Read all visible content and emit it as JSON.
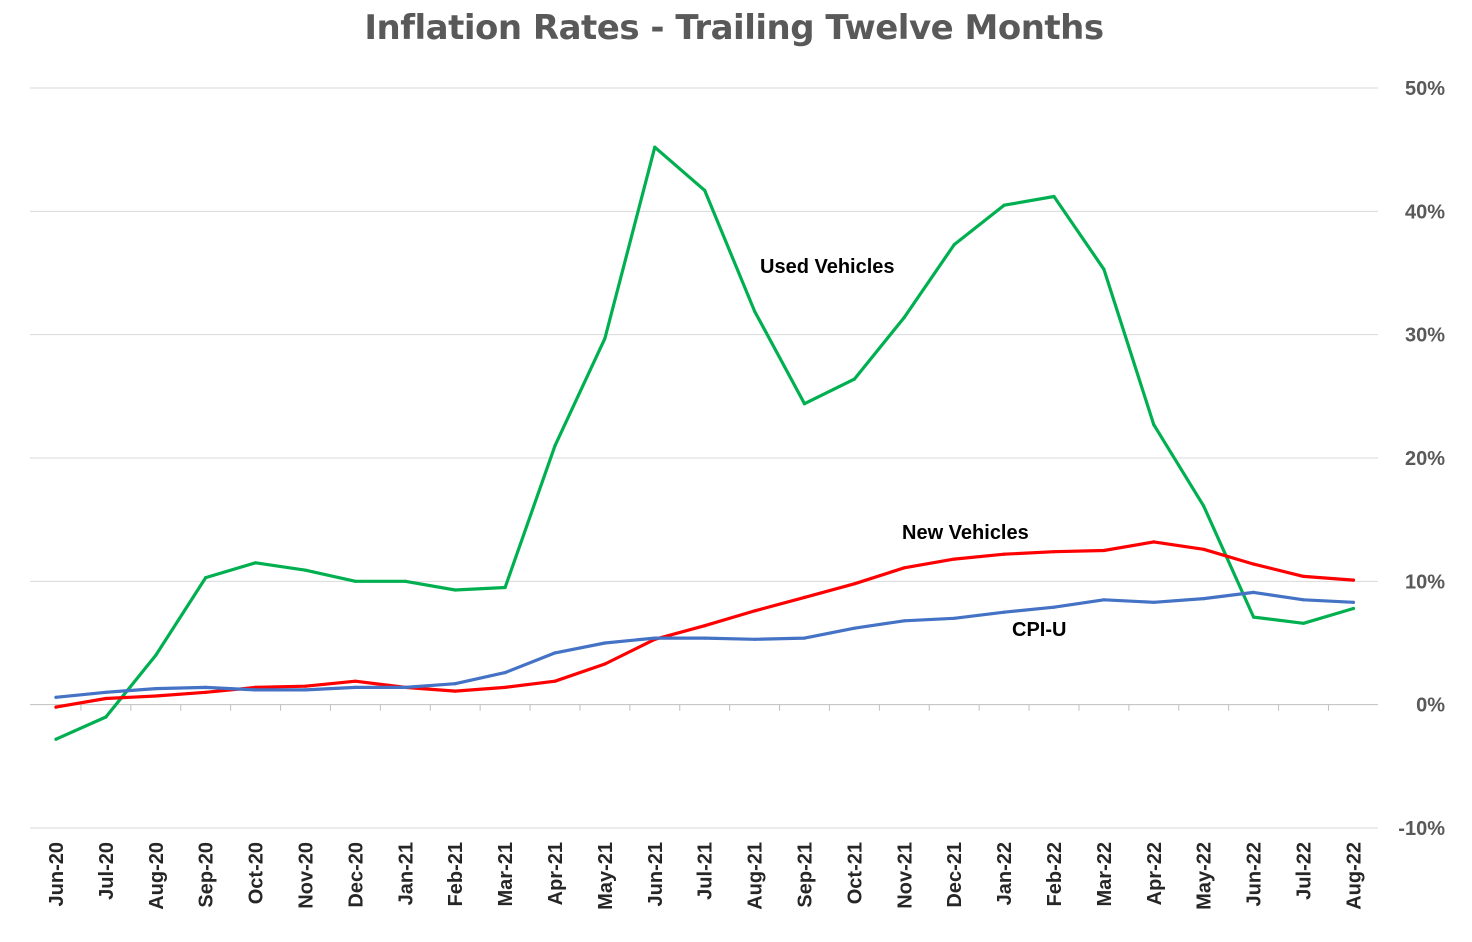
{
  "chart_data": {
    "type": "line",
    "title": "Inflation Rates - Trailing Twelve Months",
    "xlabel": "",
    "ylabel": "",
    "ylim": [
      -10,
      50
    ],
    "ytick_values": [
      -10,
      0,
      10,
      20,
      30,
      40,
      50
    ],
    "ytick_labels": [
      "-10%",
      "0%",
      "10%",
      "20%",
      "30%",
      "40%",
      "50%"
    ],
    "y_axis_side": "right",
    "grid": true,
    "legend": "none",
    "categories": [
      "Jun-20",
      "Jul-20",
      "Aug-20",
      "Sep-20",
      "Oct-20",
      "Nov-20",
      "Dec-20",
      "Jan-21",
      "Feb-21",
      "Mar-21",
      "Apr-21",
      "May-21",
      "Jun-21",
      "Jul-21",
      "Aug-21",
      "Sep-21",
      "Oct-21",
      "Nov-21",
      "Dec-21",
      "Jan-22",
      "Feb-22",
      "Mar-22",
      "Apr-22",
      "May-22",
      "Jun-22",
      "Jul-22",
      "Aug-22"
    ],
    "series": [
      {
        "name": "Used Vehicles",
        "color": "#00b050",
        "values": [
          -2.8,
          -1.0,
          4.0,
          10.3,
          11.5,
          10.9,
          10.0,
          10.0,
          9.3,
          9.5,
          21.0,
          29.7,
          45.2,
          41.7,
          31.9,
          24.4,
          26.4,
          31.4,
          37.3,
          40.5,
          41.2,
          35.3,
          22.7,
          16.1,
          7.1,
          6.6,
          7.8
        ]
      },
      {
        "name": "New Vehicles",
        "color": "#ff0000",
        "values": [
          -0.2,
          0.5,
          0.7,
          1.0,
          1.4,
          1.5,
          1.9,
          1.4,
          1.1,
          1.4,
          1.9,
          3.3,
          5.3,
          6.4,
          7.6,
          8.7,
          9.8,
          11.1,
          11.8,
          12.2,
          12.4,
          12.5,
          13.2,
          12.6,
          11.4,
          10.4,
          10.1
        ]
      },
      {
        "name": "CPI-U",
        "color": "#4472c4",
        "values": [
          0.6,
          1.0,
          1.3,
          1.4,
          1.2,
          1.2,
          1.4,
          1.4,
          1.7,
          2.6,
          4.2,
          5.0,
          5.4,
          5.4,
          5.3,
          5.4,
          6.2,
          6.8,
          7.0,
          7.5,
          7.9,
          8.5,
          8.3,
          8.6,
          9.1,
          8.5,
          8.3
        ]
      }
    ],
    "annotations": [
      {
        "text": "Used Vehicles",
        "series": "Used Vehicles"
      },
      {
        "text": "New Vehicles",
        "series": "New Vehicles"
      },
      {
        "text": "CPI-U",
        "series": "CPI-U"
      }
    ]
  }
}
